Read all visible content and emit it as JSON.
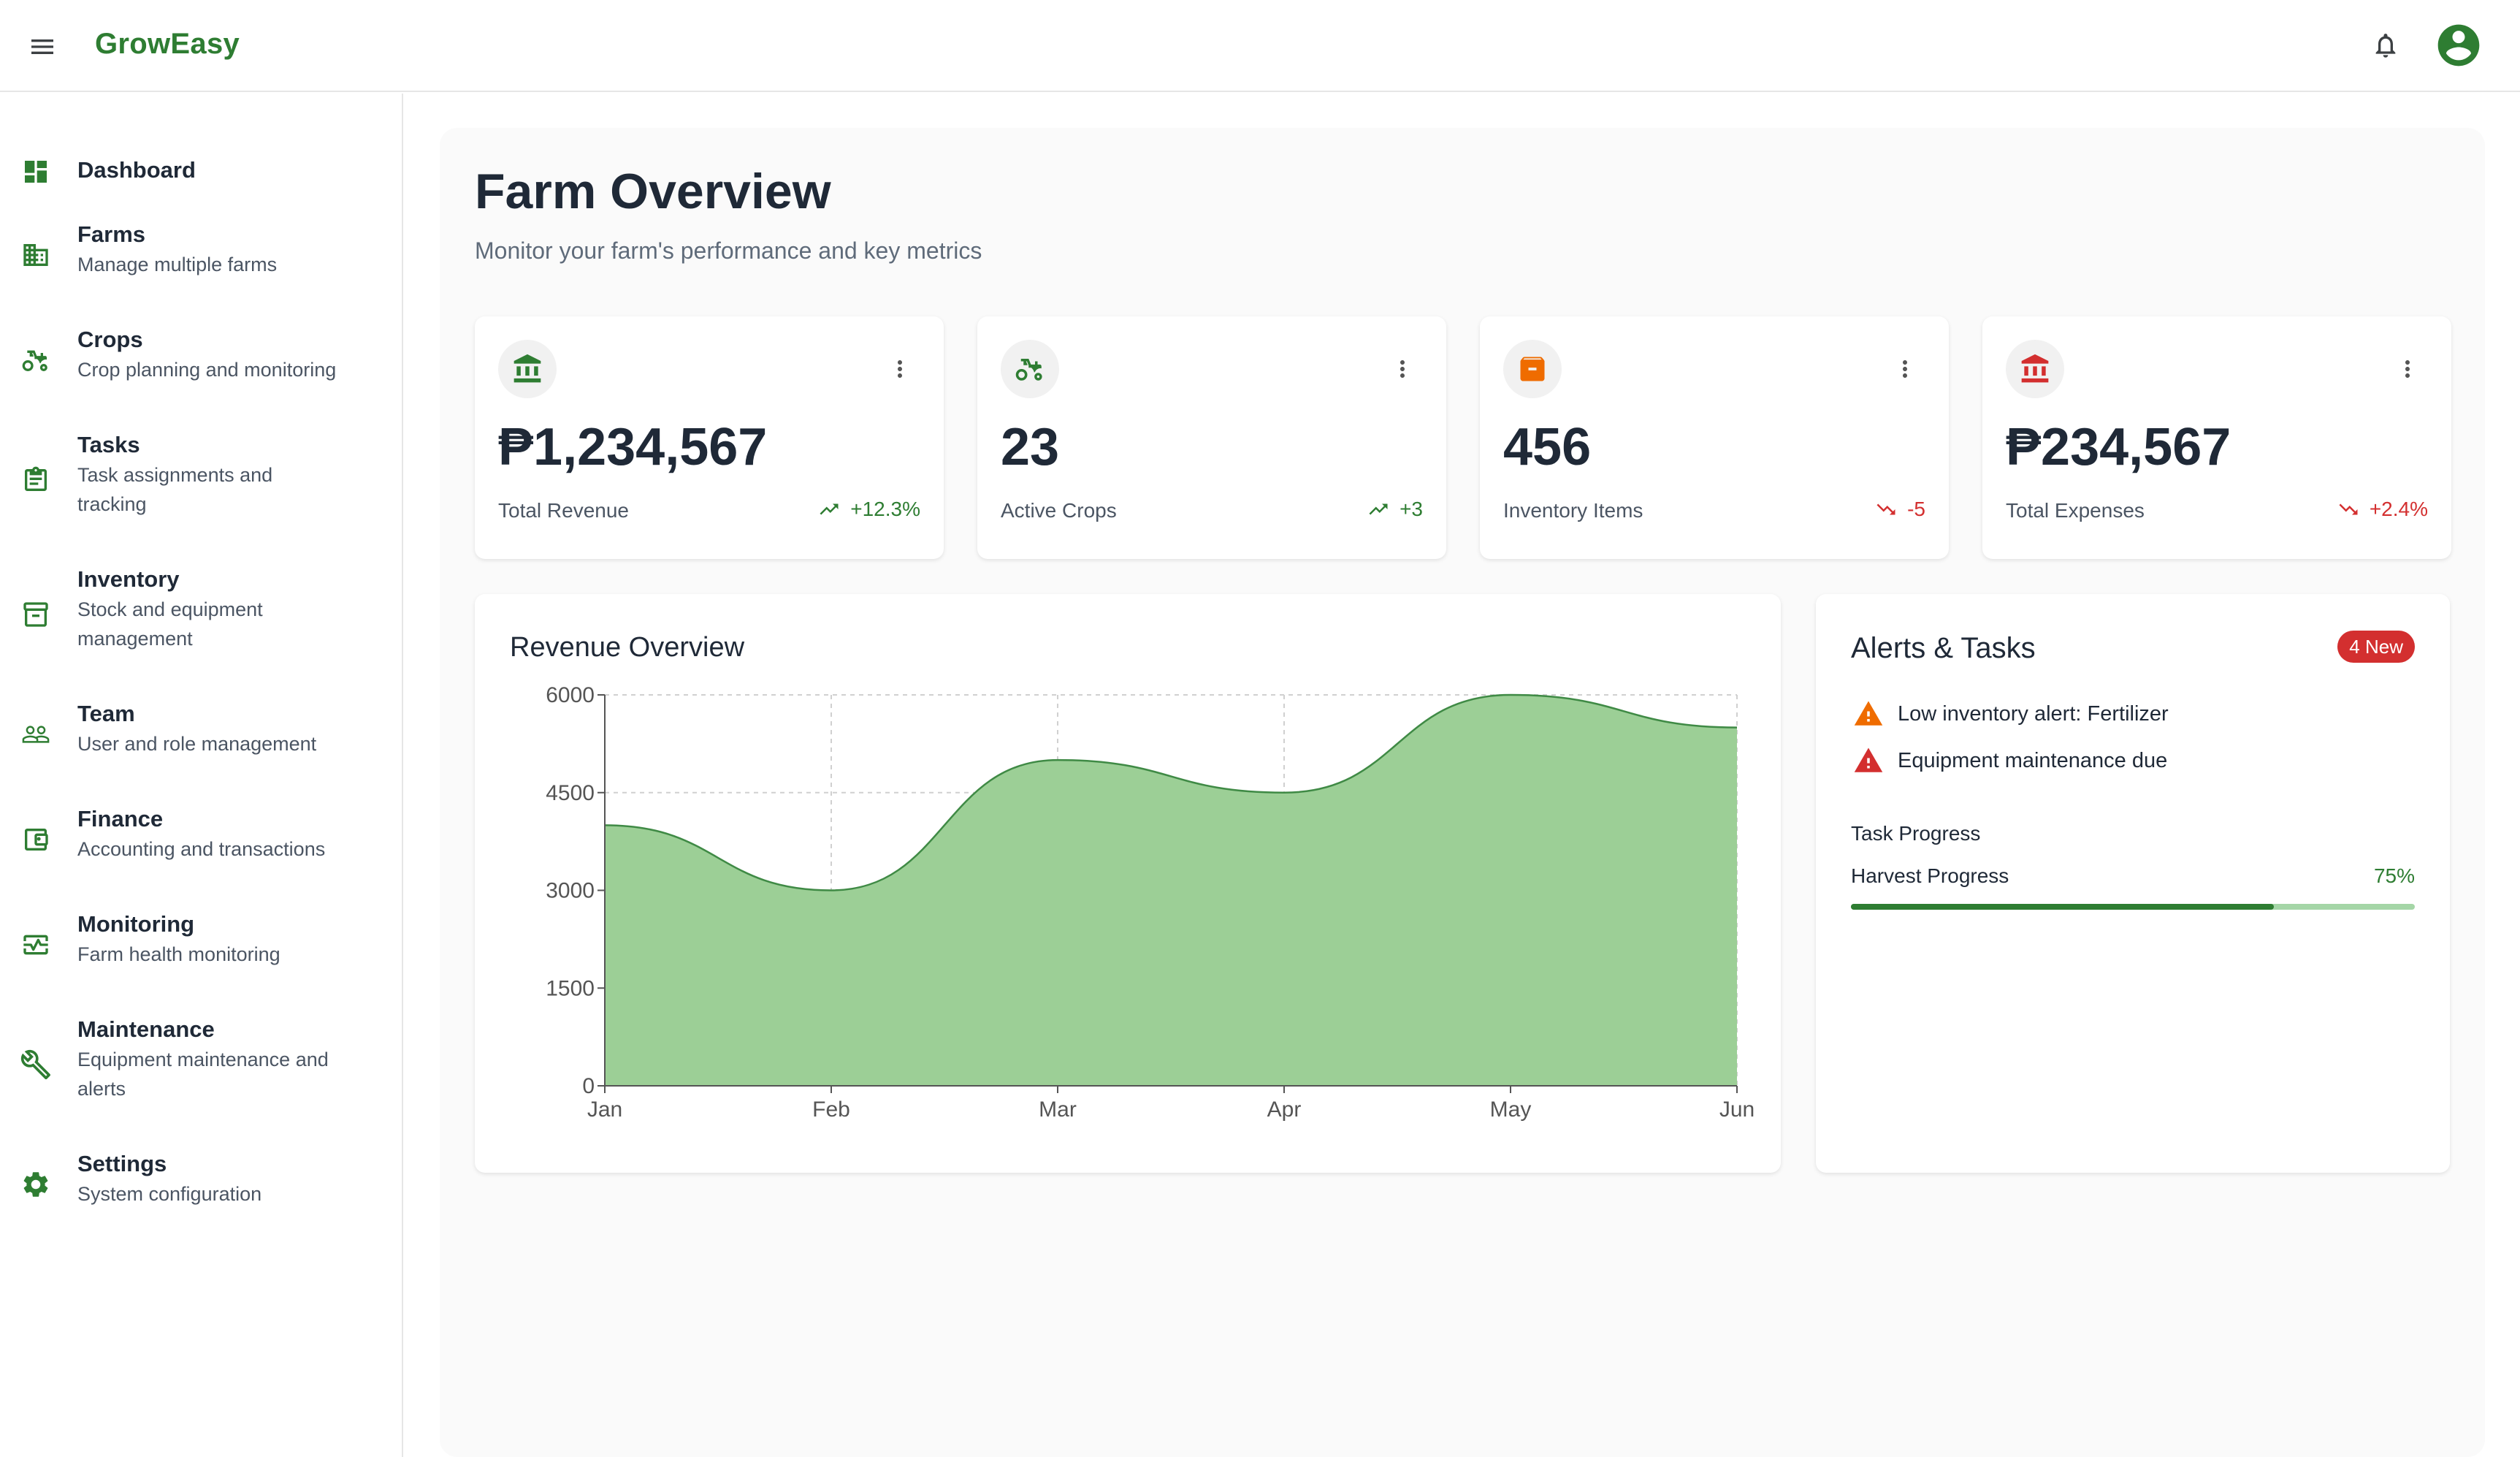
{
  "app": {
    "brand": "GrowEasy"
  },
  "colors": {
    "brand": "#2e7d32",
    "positive": "#2e7d32",
    "negative": "#d32f2f",
    "warning": "#ef6c00",
    "chart_fill": "#9ccf96",
    "chart_line": "#3f8a45"
  },
  "sidebar": {
    "items": [
      {
        "title": "Dashboard",
        "subtitle": "",
        "icon": "dashboard-icon"
      },
      {
        "title": "Farms",
        "subtitle": "Manage multiple farms",
        "icon": "building-icon"
      },
      {
        "title": "Crops",
        "subtitle": "Crop planning and monitoring",
        "icon": "tractor-icon"
      },
      {
        "title": "Tasks",
        "subtitle": "Task assignments and tracking",
        "icon": "clipboard-icon"
      },
      {
        "title": "Inventory",
        "subtitle": "Stock and equipment management",
        "icon": "archive-icon"
      },
      {
        "title": "Team",
        "subtitle": "User and role management",
        "icon": "people-icon"
      },
      {
        "title": "Finance",
        "subtitle": "Accounting and transactions",
        "icon": "wallet-icon"
      },
      {
        "title": "Monitoring",
        "subtitle": "Farm health monitoring",
        "icon": "monitor-heart-icon"
      },
      {
        "title": "Maintenance",
        "subtitle": "Equipment maintenance and alerts",
        "icon": "wrench-icon"
      },
      {
        "title": "Settings",
        "subtitle": "System configuration",
        "icon": "gear-icon"
      }
    ]
  },
  "main": {
    "title": "Farm Overview",
    "subtitle": "Monitor your farm's performance and key metrics"
  },
  "stats": [
    {
      "value": "₱1,234,567",
      "label": "Total Revenue",
      "trend": "+12.3%",
      "direction": "up",
      "icon": "bank-icon"
    },
    {
      "value": "23",
      "label": "Active Crops",
      "trend": "+3",
      "direction": "up",
      "icon": "tractor-icon"
    },
    {
      "value": "456",
      "label": "Inventory Items",
      "trend": "-5",
      "direction": "down",
      "icon": "archive-icon"
    },
    {
      "value": "₱234,567",
      "label": "Total Expenses",
      "trend": "+2.4%",
      "direction": "down",
      "icon": "bank-icon"
    }
  ],
  "revenue_chart": {
    "title": "Revenue Overview"
  },
  "chart_data": {
    "type": "area",
    "title": "Revenue Overview",
    "categories": [
      "Jan",
      "Feb",
      "Mar",
      "Apr",
      "May",
      "Jun"
    ],
    "values": [
      4000,
      3000,
      5000,
      4500,
      6000,
      5500
    ],
    "yticks": [
      0,
      1500,
      3000,
      4500,
      6000
    ],
    "ylim": [
      0,
      6000
    ],
    "grid": true
  },
  "alerts": {
    "title": "Alerts & Tasks",
    "badge": "4 New",
    "items": [
      {
        "text": "Low inventory alert: Fertilizer",
        "severity": "warning"
      },
      {
        "text": "Equipment maintenance due",
        "severity": "error"
      }
    ],
    "progress_heading": "Task Progress",
    "progress_label": "Harvest Progress",
    "progress_pct_text": "75%",
    "progress_value": 0.75
  }
}
